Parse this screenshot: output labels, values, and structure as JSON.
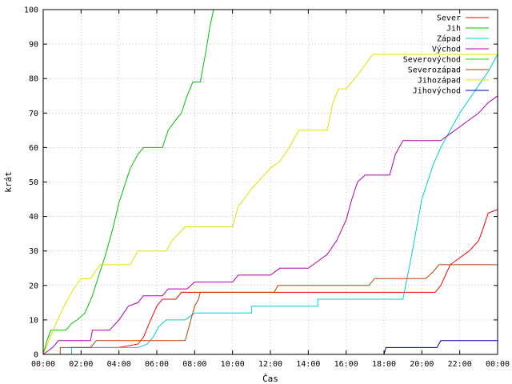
{
  "chart_data": {
    "type": "line",
    "title": "",
    "xlabel": "Čas",
    "ylabel": "krát",
    "xlim": [
      0,
      24
    ],
    "ylim": [
      0,
      100
    ],
    "xticks": [
      {
        "v": 0,
        "label": "00:00"
      },
      {
        "v": 2,
        "label": "02:00"
      },
      {
        "v": 4,
        "label": "04:00"
      },
      {
        "v": 6,
        "label": "06:00"
      },
      {
        "v": 8,
        "label": "08:00"
      },
      {
        "v": 10,
        "label": "10:00"
      },
      {
        "v": 12,
        "label": "12:00"
      },
      {
        "v": 14,
        "label": "14:00"
      },
      {
        "v": 16,
        "label": "16:00"
      },
      {
        "v": 18,
        "label": "18:00"
      },
      {
        "v": 20,
        "label": "20:00"
      },
      {
        "v": 22,
        "label": "22:00"
      },
      {
        "v": 24,
        "label": "00:00"
      }
    ],
    "yticks": [
      0,
      10,
      20,
      30,
      40,
      50,
      60,
      70,
      80,
      90,
      100
    ],
    "grid": true,
    "legend_position": "top-right",
    "series": [
      {
        "name": "Sever",
        "color": "#ff0000",
        "points": [
          [
            0,
            0
          ],
          [
            1.5,
            0
          ],
          [
            1.5,
            2
          ],
          [
            4,
            2
          ],
          [
            5,
            3
          ],
          [
            5.3,
            5
          ],
          [
            5.6,
            9
          ],
          [
            6,
            14
          ],
          [
            6.3,
            16
          ],
          [
            7,
            16
          ],
          [
            7.3,
            18
          ],
          [
            19,
            18
          ],
          [
            20.7,
            18
          ],
          [
            21,
            20
          ],
          [
            21.5,
            26
          ],
          [
            22.5,
            30
          ],
          [
            23,
            33
          ],
          [
            23.2,
            36
          ],
          [
            23.5,
            41
          ],
          [
            24,
            42
          ]
        ]
      },
      {
        "name": "Jih",
        "color": "#00c000",
        "points": [
          [
            0,
            0
          ],
          [
            0.2,
            4
          ],
          [
            0.4,
            7
          ],
          [
            1.2,
            7
          ],
          [
            1.5,
            9
          ],
          [
            1.8,
            10
          ],
          [
            2.2,
            12
          ],
          [
            2.6,
            17
          ],
          [
            3,
            24
          ],
          [
            3.3,
            29
          ],
          [
            3.7,
            37
          ],
          [
            4,
            44
          ],
          [
            4.3,
            49
          ],
          [
            4.6,
            54
          ],
          [
            5,
            58
          ],
          [
            5.3,
            60
          ],
          [
            6.3,
            60
          ],
          [
            6.6,
            65
          ],
          [
            7,
            68
          ],
          [
            7.3,
            70
          ],
          [
            7.6,
            75
          ],
          [
            7.9,
            79
          ],
          [
            8.3,
            79
          ],
          [
            8.6,
            88
          ],
          [
            8.8,
            95
          ],
          [
            9,
            100
          ]
        ]
      },
      {
        "name": "Západ",
        "color": "#00d0d0",
        "points": [
          [
            0,
            0
          ],
          [
            1.5,
            0
          ],
          [
            1.5,
            2
          ],
          [
            5,
            2
          ],
          [
            5.5,
            3
          ],
          [
            5.8,
            5
          ],
          [
            6.1,
            8
          ],
          [
            6.5,
            10
          ],
          [
            7.5,
            10
          ],
          [
            8,
            12
          ],
          [
            11,
            12
          ],
          [
            11,
            14
          ],
          [
            14.5,
            14
          ],
          [
            14.5,
            16
          ],
          [
            19,
            16
          ],
          [
            19.5,
            30
          ],
          [
            20,
            45
          ],
          [
            20.3,
            50
          ],
          [
            20.6,
            55
          ],
          [
            21,
            60
          ],
          [
            21.5,
            65
          ],
          [
            22,
            70
          ],
          [
            22.5,
            74
          ],
          [
            23,
            78
          ],
          [
            23.5,
            82
          ],
          [
            24,
            87
          ]
        ]
      },
      {
        "name": "Východ",
        "color": "#b000b0",
        "points": [
          [
            0,
            0
          ],
          [
            0.5,
            2
          ],
          [
            0.8,
            4
          ],
          [
            2.5,
            4
          ],
          [
            2.6,
            7
          ],
          [
            3.5,
            7
          ],
          [
            4,
            10
          ],
          [
            4.5,
            14
          ],
          [
            5,
            15
          ],
          [
            5.3,
            17
          ],
          [
            6.3,
            17
          ],
          [
            6.6,
            19
          ],
          [
            7.6,
            19
          ],
          [
            8,
            21
          ],
          [
            10,
            21
          ],
          [
            10.3,
            23
          ],
          [
            12,
            23
          ],
          [
            12.5,
            25
          ],
          [
            14,
            25
          ],
          [
            14.5,
            27
          ],
          [
            15,
            29
          ],
          [
            15.5,
            33
          ],
          [
            16,
            39
          ],
          [
            16.3,
            45
          ],
          [
            16.6,
            50
          ],
          [
            17,
            52
          ],
          [
            18.3,
            52
          ],
          [
            18.6,
            58
          ],
          [
            19,
            62
          ],
          [
            21,
            62
          ],
          [
            21.5,
            64
          ],
          [
            22,
            66
          ],
          [
            22.5,
            68
          ],
          [
            23,
            70
          ],
          [
            23.5,
            73
          ],
          [
            24,
            75
          ]
        ]
      },
      {
        "name": "Severovýchod",
        "color": "#00e000",
        "points": []
      },
      {
        "name": "Severozápad",
        "color": "#c04000",
        "points": [
          [
            0,
            0
          ],
          [
            0.9,
            0
          ],
          [
            0.9,
            2
          ],
          [
            2.5,
            2
          ],
          [
            2.8,
            4
          ],
          [
            7.5,
            4
          ],
          [
            7.8,
            10
          ],
          [
            8,
            14
          ],
          [
            8.2,
            16
          ],
          [
            8.3,
            18
          ],
          [
            12.2,
            18
          ],
          [
            12.4,
            20
          ],
          [
            17.2,
            20
          ],
          [
            17.5,
            22
          ],
          [
            20.2,
            22
          ],
          [
            20.6,
            24
          ],
          [
            20.9,
            26
          ],
          [
            24,
            26
          ]
        ]
      },
      {
        "name": "Jihozápad",
        "color": "#e0e000",
        "points": [
          [
            0,
            0
          ],
          [
            0.3,
            4
          ],
          [
            0.6,
            8
          ],
          [
            1.1,
            14
          ],
          [
            1.6,
            19
          ],
          [
            2,
            22
          ],
          [
            2.5,
            22
          ],
          [
            3,
            26
          ],
          [
            4.6,
            26
          ],
          [
            5,
            30
          ],
          [
            6.5,
            30
          ],
          [
            6.8,
            33
          ],
          [
            7.5,
            37
          ],
          [
            10,
            37
          ],
          [
            10.3,
            43
          ],
          [
            10.6,
            45
          ],
          [
            11,
            48
          ],
          [
            11.5,
            51
          ],
          [
            12,
            54
          ],
          [
            12.5,
            56
          ],
          [
            13,
            60
          ],
          [
            13.5,
            65
          ],
          [
            15,
            65
          ],
          [
            15.3,
            73
          ],
          [
            15.6,
            77
          ],
          [
            16,
            77
          ],
          [
            16.6,
            81
          ],
          [
            17,
            84
          ],
          [
            17.4,
            87
          ],
          [
            24,
            87
          ]
        ]
      },
      {
        "name": "Jihovýchod",
        "color": "#0000a0",
        "points": [
          [
            0,
            0
          ],
          [
            18,
            0
          ],
          [
            18.1,
            2
          ],
          [
            20.8,
            2
          ],
          [
            21,
            4
          ],
          [
            24,
            4
          ]
        ]
      }
    ]
  }
}
